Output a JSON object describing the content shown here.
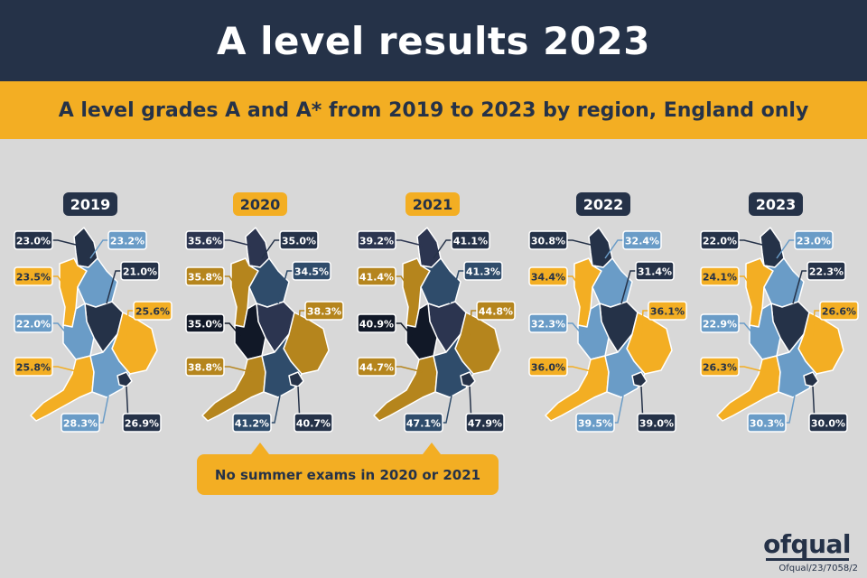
{
  "title": "A level results 2023",
  "subtitle": "A level grades A and A* from 2019 to 2023 by region, England only",
  "colors": {
    "navy": "#253248",
    "gold": "#f3ae23",
    "light_blue": "#6a9cc7",
    "dark_gold": "#b5851d",
    "mid_navy": "#2f4c6b",
    "black": "#111827",
    "background": "#d8d8d8"
  },
  "maps": [
    {
      "year": "2019",
      "year_style": "dark",
      "values": [
        "23.0%",
        "23.2%",
        "23.5%",
        "21.0%",
        "22.0%",
        "25.6%",
        "25.8%",
        "28.3%",
        "26.9%"
      ],
      "regions": {
        "north_east": "#253248",
        "north_west": "#f3ae23",
        "yorkshire": "#6a9cc7",
        "east_midlands": "#253248",
        "west_midlands": "#6a9cc7",
        "east": "#f3ae23",
        "south_west": "#f3ae23",
        "south_east": "#6a9cc7",
        "london": "#253248"
      },
      "label_colors": [
        "#253248",
        "#6a9cc7",
        "#f3ae23",
        "#253248",
        "#6a9cc7",
        "#f3ae23",
        "#f3ae23",
        "#6a9cc7",
        "#253248"
      ]
    },
    {
      "year": "2020",
      "year_style": "gold",
      "values": [
        "35.6%",
        "35.0%",
        "35.8%",
        "34.5%",
        "35.0%",
        "38.3%",
        "38.8%",
        "41.2%",
        "40.7%"
      ],
      "regions": {
        "north_east": "#2c3550",
        "north_west": "#b5851d",
        "yorkshire": "#2f4c6b",
        "east_midlands": "#2c3550",
        "west_midlands": "#111827",
        "east": "#b5851d",
        "south_west": "#b5851d",
        "south_east": "#2f4c6b",
        "london": "#253248"
      },
      "label_colors": [
        "#2c3550",
        "#253248",
        "#b5851d",
        "#2f4c6b",
        "#111827",
        "#b5851d",
        "#b5851d",
        "#2f4c6b",
        "#253248"
      ]
    },
    {
      "year": "2021",
      "year_style": "gold",
      "values": [
        "39.2%",
        "41.1%",
        "41.4%",
        "41.3%",
        "40.9%",
        "44.8%",
        "44.7%",
        "47.1%",
        "47.9%"
      ],
      "regions": {
        "north_east": "#2c3550",
        "north_west": "#b5851d",
        "yorkshire": "#2f4c6b",
        "east_midlands": "#2c3550",
        "west_midlands": "#111827",
        "east": "#b5851d",
        "south_west": "#b5851d",
        "south_east": "#2f4c6b",
        "london": "#253248"
      },
      "label_colors": [
        "#2c3550",
        "#253248",
        "#b5851d",
        "#2f4c6b",
        "#111827",
        "#b5851d",
        "#b5851d",
        "#2f4c6b",
        "#253248"
      ]
    },
    {
      "year": "2022",
      "year_style": "dark",
      "values": [
        "30.8%",
        "32.4%",
        "34.4%",
        "31.4%",
        "32.3%",
        "36.1%",
        "36.0%",
        "39.5%",
        "39.0%"
      ],
      "regions": {
        "north_east": "#253248",
        "north_west": "#f3ae23",
        "yorkshire": "#6a9cc7",
        "east_midlands": "#253248",
        "west_midlands": "#6a9cc7",
        "east": "#f3ae23",
        "south_west": "#f3ae23",
        "south_east": "#6a9cc7",
        "london": "#253248"
      },
      "label_colors": [
        "#253248",
        "#6a9cc7",
        "#f3ae23",
        "#253248",
        "#6a9cc7",
        "#f3ae23",
        "#f3ae23",
        "#6a9cc7",
        "#253248"
      ]
    },
    {
      "year": "2023",
      "year_style": "dark",
      "values": [
        "22.0%",
        "23.0%",
        "24.1%",
        "22.3%",
        "22.9%",
        "26.6%",
        "26.3%",
        "30.3%",
        "30.0%"
      ],
      "regions": {
        "north_east": "#253248",
        "north_west": "#f3ae23",
        "yorkshire": "#6a9cc7",
        "east_midlands": "#253248",
        "west_midlands": "#6a9cc7",
        "east": "#f3ae23",
        "south_west": "#f3ae23",
        "south_east": "#6a9cc7",
        "london": "#253248"
      },
      "label_colors": [
        "#253248",
        "#6a9cc7",
        "#f3ae23",
        "#253248",
        "#6a9cc7",
        "#f3ae23",
        "#f3ae23",
        "#6a9cc7",
        "#253248"
      ]
    }
  ],
  "callout": "No summer exams in 2020 or 2021",
  "logo": "ofqual",
  "reference": "Ofqual/23/7058/2"
}
